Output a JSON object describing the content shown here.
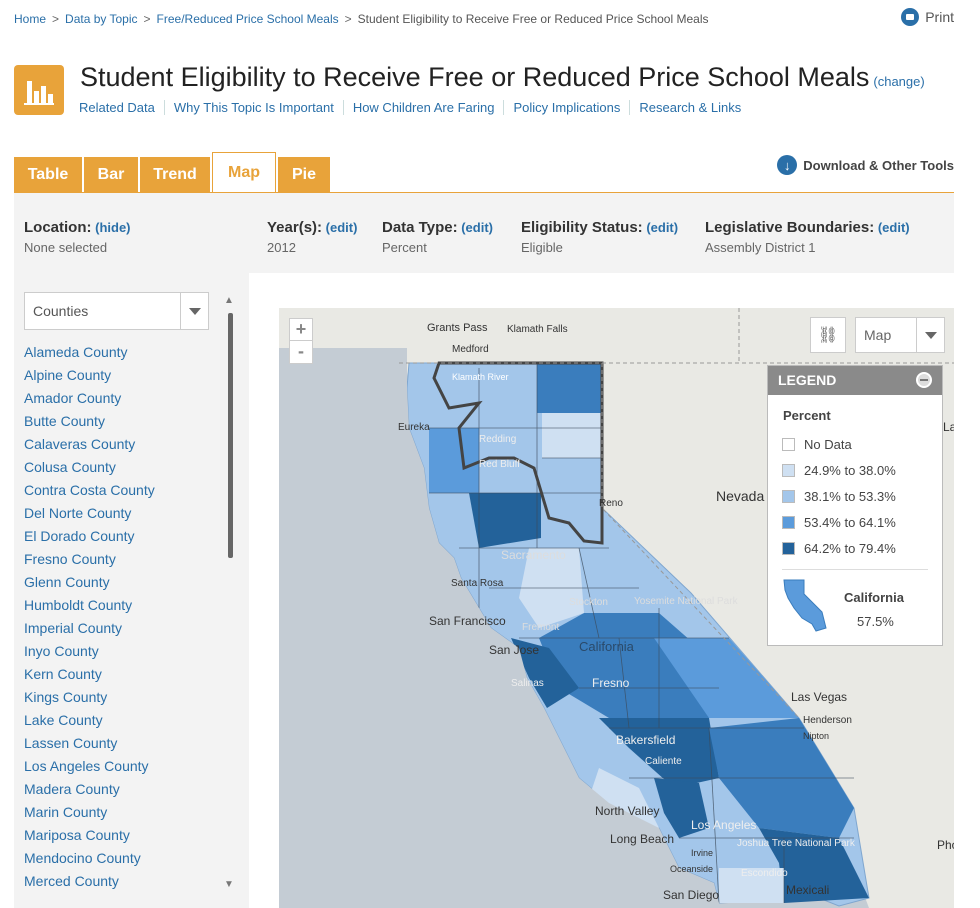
{
  "breadcrumb": {
    "items": [
      "Home",
      "Data by Topic",
      "Free/Reduced Price School Meals"
    ],
    "current": "Student Eligibility to Receive Free or Reduced Price School Meals",
    "separator": ">"
  },
  "print_label": "Print",
  "page": {
    "title": "Student Eligibility to Receive Free or Reduced Price School Meals",
    "change_label": "(change)",
    "topic_links": [
      "Related Data",
      "Why This Topic Is Important",
      "How Children Are Faring",
      "Policy Implications",
      "Research & Links"
    ]
  },
  "tabs": [
    {
      "label": "Table",
      "active": false
    },
    {
      "label": "Bar",
      "active": false
    },
    {
      "label": "Trend",
      "active": false
    },
    {
      "label": "Map",
      "active": true
    },
    {
      "label": "Pie",
      "active": false
    }
  ],
  "download_label": "Download & Other Tools",
  "filters": {
    "location": {
      "label": "Location:",
      "action": "(hide)",
      "value": "None selected"
    },
    "years": {
      "label": "Year(s):",
      "action": "(edit)",
      "value": "2012"
    },
    "data_type": {
      "label": "Data Type:",
      "action": "(edit)",
      "value": "Percent"
    },
    "eligibility": {
      "label": "Eligibility Status:",
      "action": "(edit)",
      "value": "Eligible"
    },
    "boundaries": {
      "label": "Legislative Boundaries:",
      "action": "(edit)",
      "value": "Assembly District 1"
    }
  },
  "sidebar": {
    "select_value": "Counties",
    "counties": [
      "Alameda County",
      "Alpine County",
      "Amador County",
      "Butte County",
      "Calaveras County",
      "Colusa County",
      "Contra Costa County",
      "Del Norte County",
      "El Dorado County",
      "Fresno County",
      "Glenn County",
      "Humboldt County",
      "Imperial County",
      "Inyo County",
      "Kern County",
      "Kings County",
      "Lake County",
      "Lassen County",
      "Los Angeles County",
      "Madera County",
      "Marin County",
      "Mariposa County",
      "Mendocino County",
      "Merced County"
    ]
  },
  "map": {
    "zoom_in": "+",
    "zoom_out": "-",
    "map_type": "Map",
    "labels": [
      "Grants Pass",
      "Klamath Falls",
      "Medford",
      "Eureka",
      "Klamath River",
      "Redding",
      "Red Bluff",
      "Reno",
      "Nevada",
      "Sacramento",
      "Santa Rosa",
      "San Francisco",
      "Stockton",
      "Fremont",
      "San Jose",
      "Yosemite National Park",
      "California",
      "Salinas",
      "Fresno",
      "Las Vegas",
      "Henderson",
      "Bakersfield",
      "Caliente",
      "North Valley",
      "Los Angeles",
      "Long Beach",
      "Irvine",
      "Oceanside",
      "Escondido",
      "San Diego",
      "Mexicali",
      "Joshua Tree National Park",
      "Nipton",
      "Phoenix",
      "Lake"
    ],
    "colors": {
      "no_data": "#ffffff",
      "bin1": "#cfe0f2",
      "bin2": "#a3c6ea",
      "bin3": "#5b9bdb",
      "bin4": "#23629a",
      "land": "#e9e9e4",
      "water": "#c4ccd4"
    }
  },
  "legend": {
    "title": "LEGEND",
    "subtitle": "Percent",
    "items": [
      {
        "label": "No Data",
        "color": "#ffffff"
      },
      {
        "label": "24.9% to 38.0%",
        "color": "#cfe0f2"
      },
      {
        "label": "38.1% to 53.3%",
        "color": "#a3c6ea"
      },
      {
        "label": "53.4% to 64.1%",
        "color": "#5b9bdb"
      },
      {
        "label": "64.2% to 79.4%",
        "color": "#23629a"
      }
    ],
    "state_name": "California",
    "state_value": "57.5%"
  }
}
